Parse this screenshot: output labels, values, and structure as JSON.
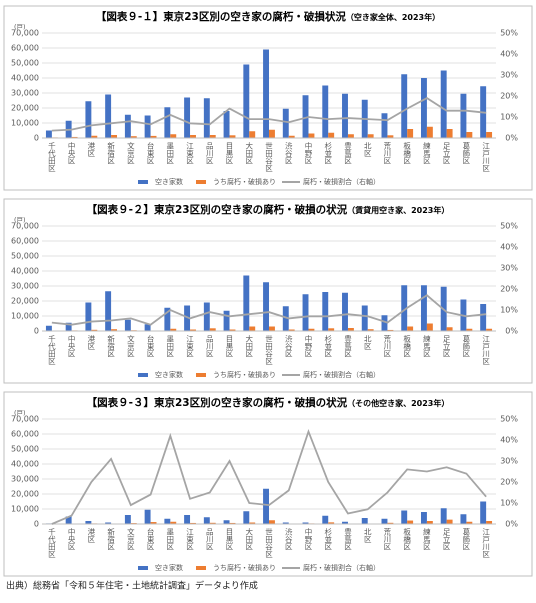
{
  "chart_data": [
    {
      "type": "bar",
      "title": "【図表９-１】東京23区別の空き家の腐朽・破損状況",
      "subtitle": "（空き家全体、2023年）",
      "y_label": "(戸)",
      "categories": [
        "千代田区",
        "中央区",
        "港区",
        "新宿区",
        "文京区",
        "台東区",
        "墨田区",
        "江東区",
        "品川区",
        "目黒区",
        "大田区",
        "世田谷区",
        "渋谷区",
        "中野区",
        "杉並区",
        "豊島区",
        "北区",
        "荒川区",
        "板橋区",
        "練馬区",
        "足立区",
        "葛飾区",
        "江戸川区"
      ],
      "series": [
        {
          "name": "空き家数",
          "color": "#4472c4",
          "values": [
            5000,
            11500,
            24500,
            29000,
            15500,
            15000,
            20500,
            27000,
            26500,
            18000,
            49000,
            59000,
            19500,
            28500,
            35000,
            29500,
            25500,
            16500,
            42500,
            40000,
            45000,
            29500,
            34500
          ]
        },
        {
          "name": "うち腐朽・破損あり",
          "color": "#ed7d31",
          "values": [
            400,
            700,
            1500,
            2000,
            1200,
            1400,
            2500,
            2000,
            2000,
            1800,
            4500,
            5500,
            1500,
            3000,
            3500,
            2500,
            2500,
            1800,
            6000,
            7500,
            6000,
            4000,
            4000
          ]
        },
        {
          "name": "腐朽・破損割合（右軸）",
          "color": "#a5a5a5",
          "axis": "y2",
          "type": "line",
          "values": [
            3.5,
            4,
            6,
            7,
            8,
            6.5,
            11,
            7,
            6.5,
            14,
            9,
            9,
            7.5,
            10,
            9,
            9.5,
            9,
            8.5,
            14,
            19,
            13,
            13,
            12
          ]
        }
      ],
      "ylim": [
        0,
        70000
      ],
      "yticks": [
        0,
        {
          "value": 10000,
          "label": "10,000"
        },
        {
          "value": 20000,
          "label": "20,000"
        },
        {
          "value": 30000,
          "label": "30,000"
        },
        {
          "value": 40000,
          "label": "40,000"
        },
        {
          "value": 50000,
          "label": "50,000"
        },
        {
          "value": 60000,
          "label": "60,000"
        },
        {
          "value": 70000,
          "label": "70,000"
        }
      ],
      "y2lim": [
        0,
        50
      ],
      "y2ticks": [
        {
          "value": 0,
          "label": "0%"
        },
        {
          "value": 10,
          "label": "10%"
        },
        {
          "value": 20,
          "label": "20%"
        },
        {
          "value": 30,
          "label": "30%"
        },
        {
          "value": 40,
          "label": "40%"
        },
        {
          "value": 50,
          "label": "50%"
        }
      ],
      "grid": true,
      "legend": "bottom"
    },
    {
      "type": "bar",
      "title": "【図表９-２】東京23区別の空き家の腐朽・破損の状況",
      "subtitle": "（賃貸用空き家、2023年）",
      "y_label": "(戸)",
      "categories": [
        "千代田区",
        "中央区",
        "港区",
        "新宿区",
        "文京区",
        "台東区",
        "墨田区",
        "江東区",
        "品川区",
        "目黒区",
        "大田区",
        "世田谷区",
        "渋谷区",
        "中野区",
        "杉並区",
        "豊島区",
        "北区",
        "荒川区",
        "板橋区",
        "練馬区",
        "足立区",
        "葛飾区",
        "江戸川区"
      ],
      "series": [
        {
          "name": "空き家数",
          "color": "#4472c4",
          "values": [
            3500,
            5500,
            19000,
            26500,
            7500,
            4500,
            15500,
            17000,
            19000,
            13500,
            37000,
            32500,
            16500,
            24500,
            26000,
            25500,
            17000,
            10500,
            30500,
            30500,
            29500,
            21000,
            18000
          ]
        },
        {
          "name": "うち腐朽・破損あり",
          "color": "#ed7d31",
          "values": [
            300,
            400,
            800,
            1200,
            500,
            300,
            1500,
            1000,
            1800,
            1000,
            3000,
            3000,
            1000,
            1500,
            1800,
            2000,
            1200,
            700,
            3000,
            5000,
            2500,
            1500,
            1500
          ]
        },
        {
          "name": "腐朽・破損割合（右軸）",
          "color": "#a5a5a5",
          "axis": "y2",
          "type": "line",
          "values": [
            4,
            3,
            4.5,
            5,
            6,
            3,
            10,
            6,
            9,
            7,
            8,
            9,
            6,
            7,
            7,
            8,
            7,
            4,
            11,
            17,
            9,
            7,
            8
          ]
        }
      ],
      "ylim": [
        0,
        70000
      ],
      "yticks": [
        0,
        {
          "value": 10000,
          "label": "10,000"
        },
        {
          "value": 20000,
          "label": "20,000"
        },
        {
          "value": 30000,
          "label": "30,000"
        },
        {
          "value": 40000,
          "label": "40,000"
        },
        {
          "value": 50000,
          "label": "50,000"
        },
        {
          "value": 60000,
          "label": "60,000"
        },
        {
          "value": 70000,
          "label": "70,000"
        }
      ],
      "y2lim": [
        0,
        50
      ],
      "y2ticks": [
        {
          "value": 0,
          "label": "0%"
        },
        {
          "value": 10,
          "label": "10%"
        },
        {
          "value": 20,
          "label": "20%"
        },
        {
          "value": 30,
          "label": "30%"
        },
        {
          "value": 40,
          "label": "40%"
        },
        {
          "value": 50,
          "label": "50%"
        }
      ],
      "grid": true,
      "legend": "bottom"
    },
    {
      "type": "bar",
      "title": "【図表９-３】東京23区別の空き家の腐朽・破損の状況",
      "subtitle": "（その他空き家、2023年）",
      "y_label": "(戸)",
      "categories": [
        "千代田区",
        "中央区",
        "港区",
        "新宿区",
        "文京区",
        "台東区",
        "墨田区",
        "江東区",
        "品川区",
        "目黒区",
        "大田区",
        "世田谷区",
        "渋谷区",
        "中野区",
        "杉並区",
        "豊島区",
        "北区",
        "荒川区",
        "板橋区",
        "練馬区",
        "足立区",
        "葛飾区",
        "江戸川区"
      ],
      "series": [
        {
          "name": "空き家数",
          "color": "#4472c4",
          "values": [
            400,
            5000,
            2000,
            1000,
            6000,
            9500,
            3500,
            6000,
            4500,
            2500,
            8500,
            23500,
            1000,
            1000,
            5500,
            1500,
            4000,
            3500,
            9000,
            8000,
            10500,
            6500,
            15000
          ]
        },
        {
          "name": "うち腐朽・破損あり",
          "color": "#ed7d31",
          "values": [
            0,
            100,
            400,
            300,
            600,
            1300,
            1500,
            700,
            800,
            700,
            1000,
            2500,
            100,
            400,
            1100,
            100,
            300,
            800,
            2300,
            2000,
            2900,
            1500,
            2000
          ]
        },
        {
          "name": "腐朽・破損割合（右軸）",
          "color": "#a5a5a5",
          "axis": "y2",
          "type": "line",
          "values": [
            0,
            4,
            20,
            31,
            9,
            14,
            42,
            12,
            15,
            30,
            10,
            9,
            16,
            44,
            20,
            5,
            7,
            15,
            26,
            25,
            27,
            24,
            13
          ]
        }
      ],
      "ylim": [
        0,
        70000
      ],
      "yticks": [
        0,
        {
          "value": 10000,
          "label": "10,000"
        },
        {
          "value": 20000,
          "label": "20,000"
        },
        {
          "value": 30000,
          "label": "30,000"
        },
        {
          "value": 40000,
          "label": "40,000"
        },
        {
          "value": 50000,
          "label": "50,000"
        },
        {
          "value": 60000,
          "label": "60,000"
        },
        {
          "value": 70000,
          "label": "70,000"
        }
      ],
      "y2lim": [
        0,
        50
      ],
      "y2ticks": [
        {
          "value": 0,
          "label": "0%"
        },
        {
          "value": 10,
          "label": "10%"
        },
        {
          "value": 20,
          "label": "20%"
        },
        {
          "value": 30,
          "label": "30%"
        },
        {
          "value": 40,
          "label": "40%"
        },
        {
          "value": 50,
          "label": "50%"
        }
      ],
      "grid": true,
      "legend": "bottom"
    }
  ],
  "source": "出典）総務省「令和５年住宅・土地統計調査」データより作成"
}
